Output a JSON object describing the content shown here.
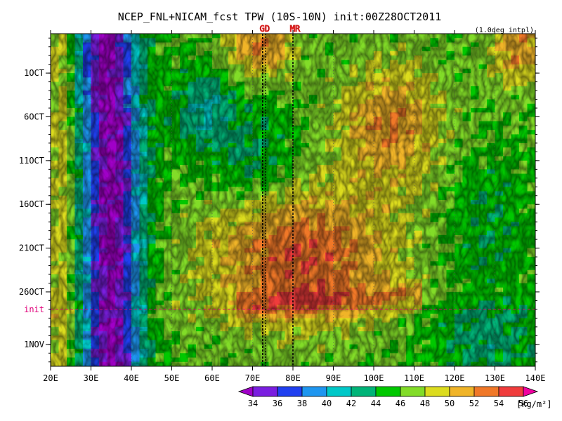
{
  "chart_data": {
    "type": "heatmap",
    "title": "NCEP_FNL+NICAM_fcst TPW (10S-10N) init:00Z28OCT2011",
    "note": "(1.0deg intpl)",
    "x_ticks": [
      {
        "value": 20,
        "label": "20E"
      },
      {
        "value": 30,
        "label": "30E"
      },
      {
        "value": 40,
        "label": "40E"
      },
      {
        "value": 50,
        "label": "50E"
      },
      {
        "value": 60,
        "label": "60E"
      },
      {
        "value": 70,
        "label": "70E"
      },
      {
        "value": 80,
        "label": "80E"
      },
      {
        "value": 90,
        "label": "90E"
      },
      {
        "value": 100,
        "label": "100E"
      },
      {
        "value": 110,
        "label": "110E"
      },
      {
        "value": 120,
        "label": "120E"
      },
      {
        "value": 130,
        "label": "130E"
      },
      {
        "value": 140,
        "label": "140E"
      }
    ],
    "xlim": [
      20,
      140
    ],
    "y_ticks": [
      {
        "value": 1,
        "label": "1OCT"
      },
      {
        "value": 6,
        "label": "6OCT"
      },
      {
        "value": 11,
        "label": "11OCT"
      },
      {
        "value": 16,
        "label": "16OCT"
      },
      {
        "value": 21,
        "label": "21OCT"
      },
      {
        "value": 26,
        "label": "26OCT"
      },
      {
        "value": 32,
        "label": "1NOV"
      }
    ],
    "ylim_days_from_1oct": [
      -3.5,
      34.5
    ],
    "y_inverted": true,
    "init_marker": {
      "label": "init",
      "value": 28,
      "color": "#e0007a"
    },
    "site_markers": [
      {
        "label": "GD",
        "lon": 72.5,
        "color": "#e02020"
      },
      {
        "label": "MR",
        "lon": 80,
        "color": "#e02020"
      }
    ],
    "colorbar": {
      "levels": [
        34,
        36,
        38,
        40,
        42,
        44,
        46,
        48,
        50,
        52,
        54,
        56
      ],
      "colors": [
        "#a000c8",
        "#7a1ee0",
        "#2040f0",
        "#1e96f0",
        "#00c8c8",
        "#00b478",
        "#00c800",
        "#82dc28",
        "#dcdc1e",
        "#f0b428",
        "#f07828",
        "#f03c3c",
        "#f000a0"
      ],
      "unit": "[kg/m²]"
    },
    "features": {
      "dry_band": {
        "lon_range": [
          28,
          42
        ],
        "value": 34
      },
      "moist_region": {
        "lon_range": [
          64,
          110
        ],
        "day_range": [
          18,
          28
        ],
        "value": 54
      },
      "moist_streak_before_init": {
        "lon_range": [
          72,
          108
        ],
        "day": 27.5,
        "value": 56
      }
    }
  }
}
